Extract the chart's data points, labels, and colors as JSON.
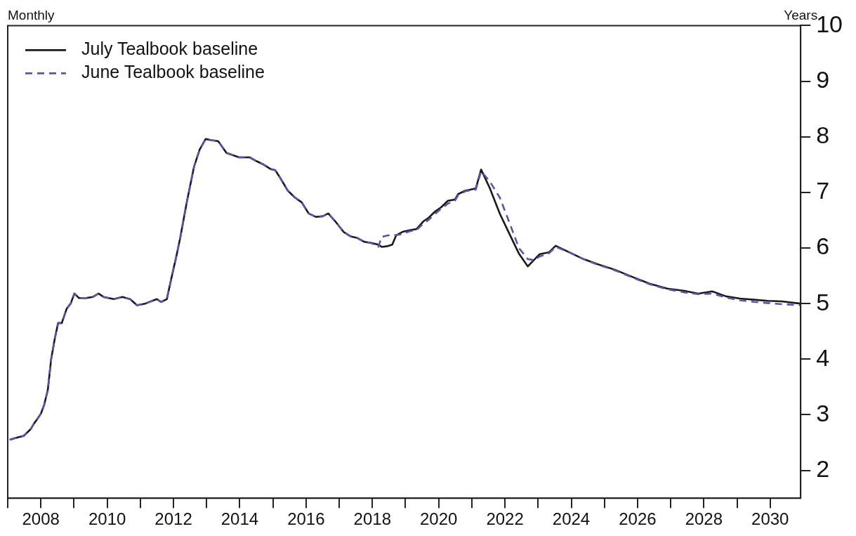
{
  "chart_data": {
    "type": "line",
    "ylabel": "Years",
    "annotations": [
      "Monthly"
    ],
    "xlim": [
      2007,
      2030.92
    ],
    "ylim": [
      1.5,
      10
    ],
    "xticks": [
      {
        "value": 2007,
        "label": null
      },
      2008,
      {
        "value": 2009,
        "label": null
      },
      2010,
      {
        "value": 2011,
        "label": null
      },
      2012,
      {
        "value": 2013,
        "label": null
      },
      2014,
      {
        "value": 2015,
        "label": null
      },
      2016,
      {
        "value": 2017,
        "label": null
      },
      2018,
      {
        "value": 2019,
        "label": null
      },
      2020,
      {
        "value": 2021,
        "label": null
      },
      2022,
      {
        "value": 2023,
        "label": null
      },
      2024,
      {
        "value": 2025,
        "label": null
      },
      2026,
      {
        "value": 2027,
        "label": null
      },
      2028,
      {
        "value": 2029,
        "label": null
      },
      2030
    ],
    "yticks": [
      2,
      3,
      4,
      5,
      6,
      7,
      8,
      9,
      10
    ],
    "grid": false,
    "legend": "top left",
    "marker": "none",
    "series": [
      {
        "name": "July Tealbook baseline",
        "color": "#1a1a1a",
        "line_style": "solid",
        "x": [
          2007.06,
          2007.27,
          2007.48,
          2007.69,
          2007.79,
          2007.9,
          2008.0,
          2008.1,
          2008.21,
          2008.31,
          2008.42,
          2008.52,
          2008.63,
          2008.78,
          2008.9,
          2009.01,
          2009.15,
          2009.36,
          2009.57,
          2009.74,
          2009.89,
          2010.2,
          2010.46,
          2010.69,
          2010.9,
          2011.15,
          2011.36,
          2011.5,
          2011.63,
          2011.8,
          2011.95,
          2012.09,
          2012.2,
          2012.41,
          2012.62,
          2012.79,
          2012.97,
          2013.14,
          2013.35,
          2013.6,
          2013.98,
          2014.3,
          2014.51,
          2014.72,
          2014.93,
          2015.07,
          2015.2,
          2015.45,
          2015.66,
          2015.87,
          2016.08,
          2016.29,
          2016.5,
          2016.67,
          2016.88,
          2017.13,
          2017.34,
          2017.55,
          2017.76,
          2017.97,
          2018.18,
          2018.28,
          2018.43,
          2018.6,
          2018.72,
          2018.91,
          2019.12,
          2019.33,
          2019.54,
          2019.69,
          2019.9,
          2020.07,
          2020.28,
          2020.49,
          2020.59,
          2020.8,
          2021.12,
          2021.28,
          2021.54,
          2021.85,
          2022.17,
          2022.42,
          2022.69,
          2022.9,
          2023.05,
          2023.32,
          2023.53,
          2023.95,
          2024.37,
          2024.79,
          2025.31,
          2025.84,
          2026.36,
          2026.89,
          2027.41,
          2027.83,
          2028.25,
          2028.67,
          2029.09,
          2029.51,
          2029.93,
          2030.35,
          2030.9
        ],
        "values": [
          2.55,
          2.59,
          2.62,
          2.74,
          2.84,
          2.93,
          3.02,
          3.18,
          3.45,
          4.0,
          4.37,
          4.65,
          4.65,
          4.91,
          5.0,
          5.18,
          5.1,
          5.1,
          5.12,
          5.18,
          5.12,
          5.08,
          5.12,
          5.08,
          4.97,
          5.0,
          5.05,
          5.08,
          5.03,
          5.08,
          5.49,
          5.86,
          6.17,
          6.85,
          7.46,
          7.77,
          7.96,
          7.94,
          7.92,
          7.71,
          7.63,
          7.63,
          7.56,
          7.5,
          7.42,
          7.4,
          7.28,
          7.03,
          6.91,
          6.82,
          6.62,
          6.56,
          6.57,
          6.62,
          6.48,
          6.29,
          6.21,
          6.18,
          6.11,
          6.09,
          6.06,
          6.02,
          6.03,
          6.06,
          6.23,
          6.29,
          6.32,
          6.34,
          6.48,
          6.54,
          6.66,
          6.73,
          6.85,
          6.87,
          6.97,
          7.03,
          7.07,
          7.41,
          7.08,
          6.61,
          6.21,
          5.9,
          5.67,
          5.8,
          5.89,
          5.92,
          6.04,
          5.92,
          5.8,
          5.71,
          5.61,
          5.48,
          5.36,
          5.27,
          5.23,
          5.18,
          5.22,
          5.13,
          5.09,
          5.07,
          5.05,
          5.04,
          5.0
        ]
      },
      {
        "name": "June Tealbook baseline",
        "color": "#5a55a8",
        "line_style": "dashed",
        "x": [
          2007.06,
          2007.27,
          2007.48,
          2007.69,
          2007.79,
          2007.9,
          2008.0,
          2008.1,
          2008.21,
          2008.31,
          2008.42,
          2008.52,
          2008.63,
          2008.78,
          2008.9,
          2009.01,
          2009.15,
          2009.36,
          2009.57,
          2009.74,
          2009.89,
          2010.2,
          2010.46,
          2010.69,
          2010.9,
          2011.15,
          2011.36,
          2011.5,
          2011.63,
          2011.8,
          2011.95,
          2012.09,
          2012.2,
          2012.41,
          2012.62,
          2012.79,
          2012.97,
          2013.14,
          2013.35,
          2013.6,
          2013.98,
          2014.3,
          2014.51,
          2014.72,
          2014.93,
          2015.07,
          2015.2,
          2015.45,
          2015.66,
          2015.87,
          2016.08,
          2016.29,
          2016.5,
          2016.67,
          2016.88,
          2017.13,
          2017.34,
          2017.55,
          2017.76,
          2017.97,
          2018.18,
          2018.28,
          2018.43,
          2018.6,
          2018.72,
          2018.91,
          2019.12,
          2019.33,
          2019.54,
          2019.69,
          2019.9,
          2020.07,
          2020.28,
          2020.49,
          2020.59,
          2020.8,
          2021.12,
          2021.28,
          2021.54,
          2021.85,
          2022.17,
          2022.42,
          2022.69,
          2022.9,
          2023.05,
          2023.32,
          2023.53,
          2023.95,
          2024.37,
          2024.79,
          2025.31,
          2025.84,
          2026.36,
          2026.89,
          2027.41,
          2027.83,
          2028.25,
          2028.67,
          2029.09,
          2029.51,
          2029.93,
          2030.35,
          2030.9
        ],
        "values": [
          2.55,
          2.59,
          2.62,
          2.74,
          2.84,
          2.93,
          3.02,
          3.18,
          3.45,
          4.0,
          4.37,
          4.65,
          4.65,
          4.91,
          5.0,
          5.18,
          5.1,
          5.1,
          5.12,
          5.18,
          5.12,
          5.08,
          5.12,
          5.08,
          4.97,
          5.0,
          5.05,
          5.08,
          5.03,
          5.08,
          5.49,
          5.86,
          6.17,
          6.85,
          7.46,
          7.77,
          7.96,
          7.94,
          7.92,
          7.71,
          7.63,
          7.63,
          7.56,
          7.5,
          7.42,
          7.4,
          7.28,
          7.03,
          6.91,
          6.82,
          6.62,
          6.56,
          6.57,
          6.62,
          6.48,
          6.29,
          6.21,
          6.18,
          6.11,
          6.09,
          6.02,
          6.2,
          6.22,
          6.24,
          6.23,
          6.25,
          6.3,
          6.32,
          6.44,
          6.5,
          6.62,
          6.7,
          6.8,
          6.85,
          6.95,
          7.02,
          7.05,
          7.38,
          7.2,
          6.9,
          6.4,
          6.0,
          5.8,
          5.78,
          5.85,
          5.9,
          6.02,
          5.92,
          5.8,
          5.7,
          5.6,
          5.47,
          5.35,
          5.26,
          5.2,
          5.17,
          5.18,
          5.11,
          5.06,
          5.03,
          5.01,
          4.99,
          4.97
        ]
      }
    ]
  }
}
